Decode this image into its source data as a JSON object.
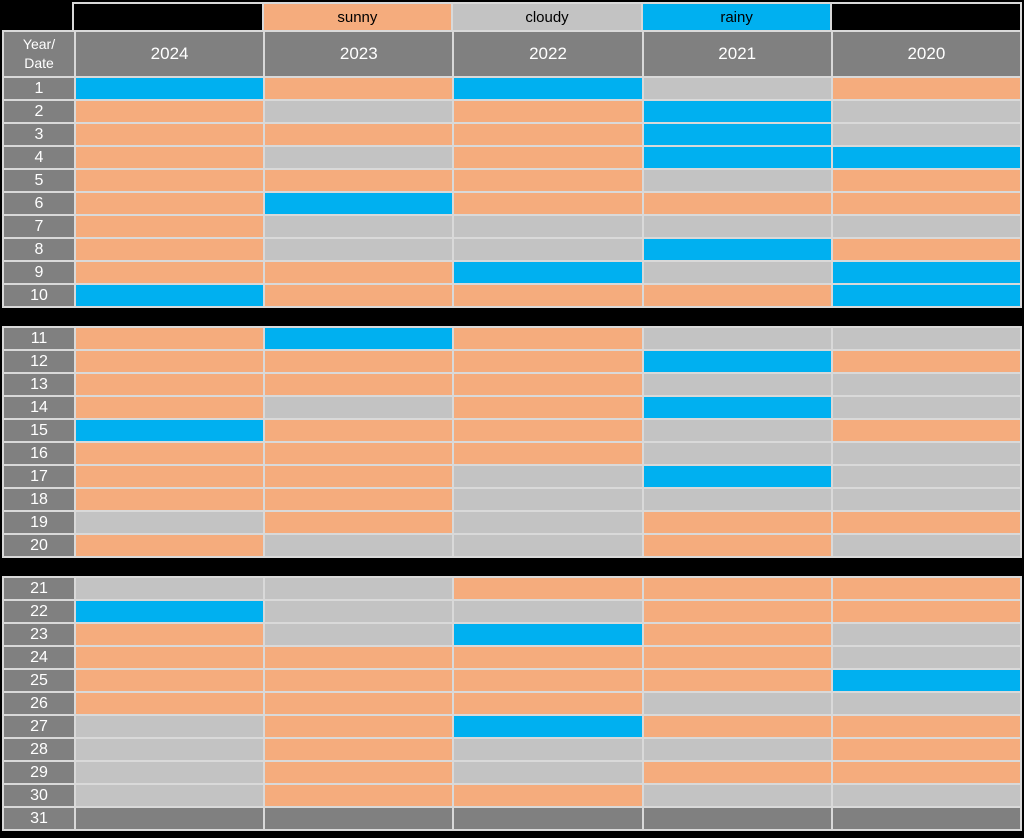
{
  "legend": {
    "cells": [
      {
        "kind": "blank",
        "label": ""
      },
      {
        "kind": "sunny",
        "label": "sunny"
      },
      {
        "kind": "cloudy",
        "label": "cloudy"
      },
      {
        "kind": "rainy",
        "label": "rainy"
      },
      {
        "kind": "blank",
        "label": ""
      }
    ]
  },
  "header": {
    "corner_line1": "Year/",
    "corner_line2": "Date",
    "years": [
      "2024",
      "2023",
      "2022",
      "2021",
      "2020"
    ]
  },
  "colors": {
    "sunny": "#F5AC7D",
    "cloudy": "#C3C3C3",
    "rainy": "#00B0F0",
    "empty": "#808080",
    "header_bg": "#808080",
    "border": "#D9D9D9",
    "background": "#000000"
  },
  "chart_data": {
    "type": "heatmap",
    "columns": [
      "2024",
      "2023",
      "2022",
      "2021",
      "2020"
    ],
    "row_label_header": "Year/Date",
    "legend_entries": [
      "sunny",
      "cloudy",
      "rainy"
    ],
    "row_groups": [
      [
        1,
        10
      ],
      [
        11,
        20
      ],
      [
        21,
        31
      ]
    ],
    "rows": [
      {
        "date": "1",
        "values": [
          "rainy",
          "sunny",
          "rainy",
          "cloudy",
          "sunny"
        ]
      },
      {
        "date": "2",
        "values": [
          "sunny",
          "cloudy",
          "sunny",
          "rainy",
          "cloudy"
        ]
      },
      {
        "date": "3",
        "values": [
          "sunny",
          "sunny",
          "sunny",
          "rainy",
          "cloudy"
        ]
      },
      {
        "date": "4",
        "values": [
          "sunny",
          "cloudy",
          "sunny",
          "rainy",
          "rainy"
        ]
      },
      {
        "date": "5",
        "values": [
          "sunny",
          "sunny",
          "sunny",
          "cloudy",
          "sunny"
        ]
      },
      {
        "date": "6",
        "values": [
          "sunny",
          "rainy",
          "sunny",
          "sunny",
          "sunny"
        ]
      },
      {
        "date": "7",
        "values": [
          "sunny",
          "cloudy",
          "cloudy",
          "cloudy",
          "cloudy"
        ]
      },
      {
        "date": "8",
        "values": [
          "sunny",
          "cloudy",
          "cloudy",
          "rainy",
          "sunny"
        ]
      },
      {
        "date": "9",
        "values": [
          "sunny",
          "sunny",
          "rainy",
          "cloudy",
          "rainy"
        ]
      },
      {
        "date": "10",
        "values": [
          "rainy",
          "sunny",
          "sunny",
          "sunny",
          "rainy"
        ]
      },
      {
        "date": "11",
        "values": [
          "sunny",
          "rainy",
          "sunny",
          "cloudy",
          "cloudy"
        ]
      },
      {
        "date": "12",
        "values": [
          "sunny",
          "sunny",
          "sunny",
          "rainy",
          "sunny"
        ]
      },
      {
        "date": "13",
        "values": [
          "sunny",
          "sunny",
          "sunny",
          "cloudy",
          "cloudy"
        ]
      },
      {
        "date": "14",
        "values": [
          "sunny",
          "cloudy",
          "sunny",
          "rainy",
          "cloudy"
        ]
      },
      {
        "date": "15",
        "values": [
          "rainy",
          "sunny",
          "sunny",
          "cloudy",
          "sunny"
        ]
      },
      {
        "date": "16",
        "values": [
          "sunny",
          "sunny",
          "sunny",
          "cloudy",
          "cloudy"
        ]
      },
      {
        "date": "17",
        "values": [
          "sunny",
          "sunny",
          "cloudy",
          "rainy",
          "cloudy"
        ]
      },
      {
        "date": "18",
        "values": [
          "sunny",
          "sunny",
          "cloudy",
          "cloudy",
          "cloudy"
        ]
      },
      {
        "date": "19",
        "values": [
          "cloudy",
          "sunny",
          "cloudy",
          "sunny",
          "sunny"
        ]
      },
      {
        "date": "20",
        "values": [
          "sunny",
          "cloudy",
          "cloudy",
          "sunny",
          "cloudy"
        ]
      },
      {
        "date": "21",
        "values": [
          "cloudy",
          "cloudy",
          "sunny",
          "sunny",
          "sunny"
        ]
      },
      {
        "date": "22",
        "values": [
          "rainy",
          "cloudy",
          "cloudy",
          "sunny",
          "sunny"
        ]
      },
      {
        "date": "23",
        "values": [
          "sunny",
          "cloudy",
          "rainy",
          "sunny",
          "cloudy"
        ]
      },
      {
        "date": "24",
        "values": [
          "sunny",
          "sunny",
          "sunny",
          "sunny",
          "cloudy"
        ]
      },
      {
        "date": "25",
        "values": [
          "sunny",
          "sunny",
          "sunny",
          "sunny",
          "rainy"
        ]
      },
      {
        "date": "26",
        "values": [
          "sunny",
          "sunny",
          "sunny",
          "cloudy",
          "cloudy"
        ]
      },
      {
        "date": "27",
        "values": [
          "cloudy",
          "sunny",
          "rainy",
          "sunny",
          "sunny"
        ]
      },
      {
        "date": "28",
        "values": [
          "cloudy",
          "sunny",
          "cloudy",
          "cloudy",
          "sunny"
        ]
      },
      {
        "date": "29",
        "values": [
          "cloudy",
          "sunny",
          "cloudy",
          "sunny",
          "sunny"
        ]
      },
      {
        "date": "30",
        "values": [
          "cloudy",
          "sunny",
          "sunny",
          "cloudy",
          "cloudy"
        ]
      },
      {
        "date": "31",
        "values": [
          "empty",
          "empty",
          "empty",
          "empty",
          "empty"
        ]
      }
    ]
  }
}
